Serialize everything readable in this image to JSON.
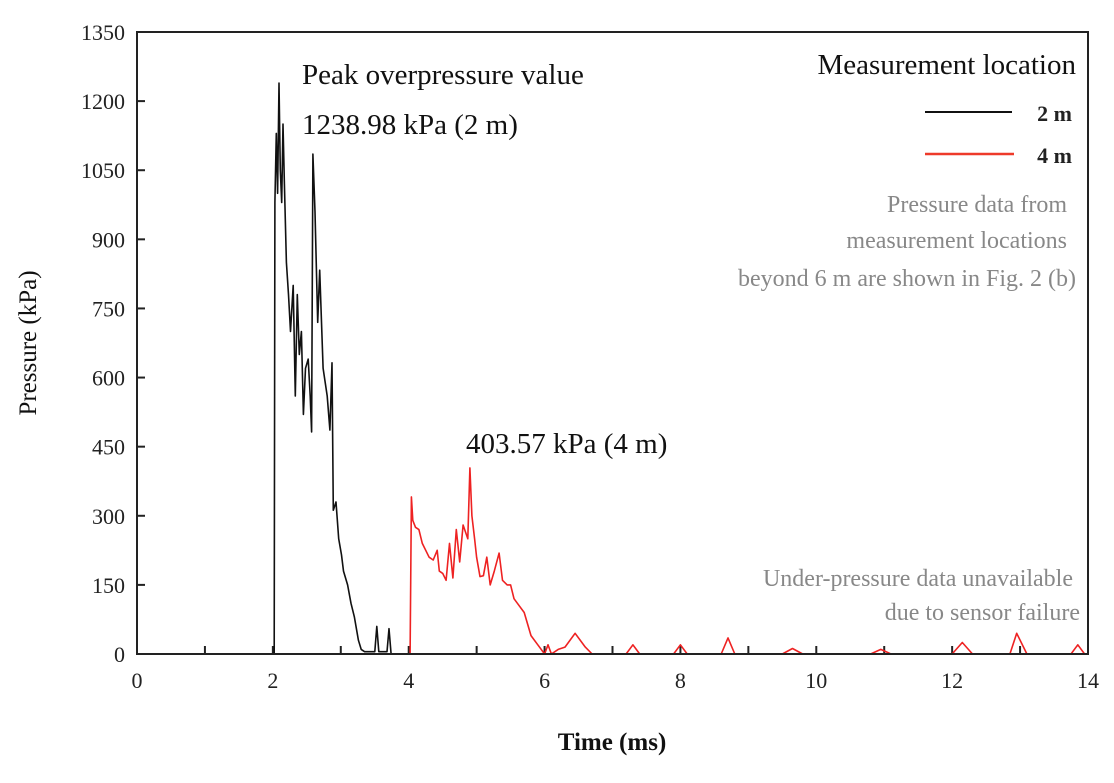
{
  "chart_data": {
    "type": "line",
    "xlabel": "Time (ms)",
    "ylabel": "Pressure (kPa)",
    "xlim": [
      0,
      14
    ],
    "ylim": [
      0,
      1350
    ],
    "xticks": [
      0,
      2,
      4,
      6,
      8,
      10,
      12,
      14
    ],
    "xtick_labels": [
      "0",
      "2",
      "4",
      "6",
      "8",
      "10",
      "12",
      "14"
    ],
    "yticks": [
      0,
      150,
      300,
      450,
      600,
      750,
      900,
      1050,
      1200,
      1350
    ],
    "ytick_labels": [
      "0",
      "150",
      "300",
      "450",
      "600",
      "750",
      "900",
      "1050",
      "1200",
      "1350"
    ],
    "grid": false,
    "legend": {
      "title": "Measurement location",
      "placement": "top-right",
      "entries": [
        "2 m",
        "4 m"
      ]
    },
    "series": [
      {
        "name": "2 m",
        "color": "#111111",
        "x": [
          0,
          2.0,
          2.02,
          2.03,
          2.05,
          2.07,
          2.09,
          2.11,
          2.13,
          2.15,
          2.17,
          2.2,
          2.23,
          2.26,
          2.3,
          2.33,
          2.36,
          2.39,
          2.42,
          2.45,
          2.48,
          2.52,
          2.55,
          2.57,
          2.59,
          2.62,
          2.66,
          2.69,
          2.74,
          2.8,
          2.84,
          2.87,
          2.89,
          2.93,
          2.97,
          3.01,
          3.04,
          3.1,
          3.15,
          3.2,
          3.26,
          3.3,
          3.35,
          3.5,
          3.53,
          3.56,
          3.68,
          3.71,
          3.74,
          4.0
        ],
        "y": [
          0,
          0,
          0,
          980,
          1130,
          1000,
          1239,
          1050,
          980,
          1150,
          1020,
          850,
          780,
          700,
          800,
          560,
          780,
          650,
          700,
          520,
          620,
          640,
          560,
          482,
          1085,
          960,
          720,
          833,
          620,
          560,
          486,
          632,
          312,
          330,
          250,
          215,
          180,
          150,
          110,
          80,
          30,
          10,
          5,
          5,
          60,
          5,
          5,
          55,
          0,
          0
        ]
      },
      {
        "name": "4 m",
        "color": "#ee2222",
        "x": [
          0,
          4.02,
          4.04,
          4.06,
          4.1,
          4.15,
          4.2,
          4.3,
          4.36,
          4.42,
          4.45,
          4.5,
          4.55,
          4.6,
          4.65,
          4.7,
          4.75,
          4.8,
          4.87,
          4.9,
          4.93,
          4.97,
          5.0,
          5.05,
          5.1,
          5.15,
          5.2,
          5.26,
          5.33,
          5.38,
          5.45,
          5.5,
          5.55,
          5.6,
          5.7,
          5.8,
          5.9,
          6.0,
          6.05,
          6.1,
          6.2,
          6.3,
          6.45,
          6.6,
          6.7,
          7.2,
          7.3,
          7.4,
          7.9,
          8.0,
          8.1,
          8.6,
          8.7,
          8.8,
          9.5,
          9.65,
          9.8,
          10.8,
          10.95,
          11.1,
          12.0,
          12.15,
          12.3,
          12.85,
          12.95,
          13.1,
          13.75,
          13.85,
          13.95,
          14.0
        ],
        "y": [
          0,
          0,
          341,
          290,
          275,
          270,
          240,
          210,
          204,
          225,
          180,
          175,
          160,
          240,
          165,
          270,
          200,
          280,
          250,
          404,
          300,
          250,
          210,
          168,
          170,
          210,
          150,
          180,
          219,
          160,
          150,
          150,
          120,
          110,
          90,
          40,
          20,
          0,
          20,
          0,
          10,
          15,
          45,
          15,
          0,
          0,
          20,
          0,
          0,
          20,
          0,
          0,
          35,
          0,
          0,
          12,
          0,
          0,
          10,
          0,
          0,
          25,
          0,
          0,
          45,
          0,
          0,
          20,
          0,
          0
        ]
      }
    ],
    "annotations": {
      "peak_title": "Peak overpressure value",
      "peak_2m": "1238.98 kPa (2 m)",
      "peak_4m": "403.57 kPa (4 m)",
      "note_fig": [
        "Pressure data from",
        "measurement locations",
        "beyond 6 m are shown in Fig. 2 (b)"
      ],
      "note_sensor": [
        "Under-pressure data unavailable",
        "due to sensor failure"
      ]
    }
  }
}
